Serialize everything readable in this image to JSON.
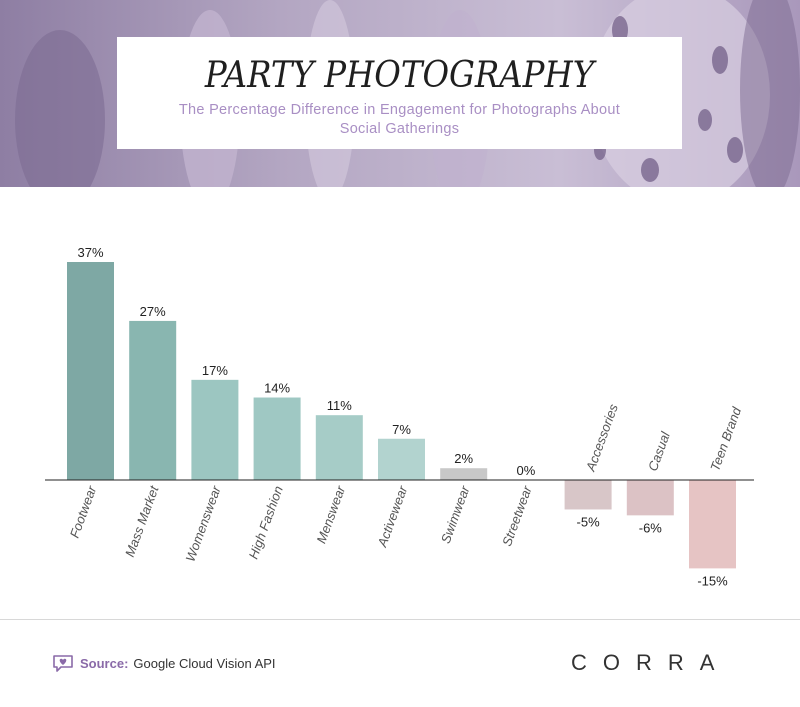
{
  "header": {
    "title": "PARTY PHOTOGRAPHY",
    "subtitle": "The Percentage Difference in Engagement for Photographs About Social Gatherings"
  },
  "footer": {
    "source_label": "Source:",
    "source_text": "Google Cloud Vision API",
    "brand": "CORRA"
  },
  "colors": {
    "positive_dark": "#7ea8a4",
    "positive_light": "#b2d3cf",
    "neutral": "#c8c8c8",
    "negative": "#d9c0c4",
    "negative_strong": "#e5c5c5",
    "accent": "#8a6aa8"
  },
  "icons": {
    "source": "chat-heart-icon"
  },
  "chart_data": {
    "type": "bar",
    "categories": [
      "Footwear",
      "Mass Market",
      "Womenswear",
      "High Fashion",
      "Menswear",
      "Activewear",
      "Swimwear",
      "Streetwear",
      "Accessories",
      "Casual",
      "Teen Brand"
    ],
    "values": [
      37,
      27,
      17,
      14,
      11,
      7,
      2,
      0,
      -5,
      -6,
      -15
    ],
    "value_labels": [
      "37%",
      "27%",
      "17%",
      "14%",
      "11%",
      "7%",
      "2%",
      "0%",
      "-5%",
      "-6%",
      "-15%"
    ],
    "bar_colors": [
      "#7ea8a4",
      "#89b6b0",
      "#9cc6c1",
      "#9fc8c3",
      "#a6ccc7",
      "#b2d3cf",
      "#c8c8c8",
      "#c8c8c8",
      "#d8c6c8",
      "#dcc2c5",
      "#e6c4c4"
    ],
    "title": "",
    "xlabel": "",
    "ylabel": "",
    "grid": false
  }
}
